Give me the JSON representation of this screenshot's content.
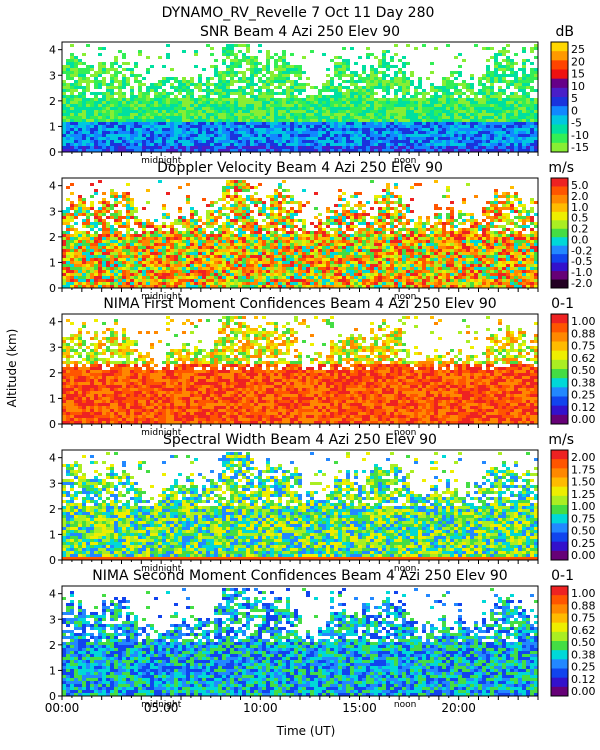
{
  "header": {
    "title": "DYNAMO_RV_Revelle    7 Oct 11 Day 280"
  },
  "chart_data": {
    "type": "heatmap",
    "ylabel": "Altitude (km)",
    "xlabel": "Time (UT)",
    "x_tick_labels": [
      "00:00",
      "05:00",
      "10:00",
      "15:00",
      "20:00"
    ],
    "x_ticks_hours": [
      0,
      5,
      10,
      15,
      20
    ],
    "xlim_hours": [
      0,
      24
    ],
    "ylim_km": [
      0,
      4.3
    ],
    "y_tick_labels": [
      "0",
      "1",
      "2",
      "3",
      "4"
    ],
    "markers": [
      {
        "label": "midnight",
        "hour": 5.0
      },
      {
        "label": "noon",
        "hour": 17.3
      }
    ],
    "panels": [
      {
        "title": "SNR Beam 4 Azi 250 Elev 90",
        "units": "dB",
        "colorbar_labels": [
          "25",
          "20",
          "15",
          "10",
          "5",
          "0",
          "-5",
          "-10",
          "-15"
        ],
        "colors": [
          "#ffd700",
          "#ff9900",
          "#ff4400",
          "#ee1111",
          "#660088",
          "#4a1ec8",
          "#1a33dd",
          "#1188ff",
          "#00c8e0",
          "#00e0a0",
          "#33ee55",
          "#88ee33"
        ]
      },
      {
        "title": "Doppler Velocity Beam 4 Azi 250 Elev 90",
        "units": "m/s",
        "colorbar_labels": [
          "5.0",
          "2.0",
          "1.0",
          "0.5",
          "0.2",
          "0.0",
          "-0.2",
          "-0.5",
          "-1.0",
          "-2.0"
        ],
        "colors": [
          "#ee2222",
          "#ff5500",
          "#ff8800",
          "#ffbb00",
          "#eeee00",
          "#aaee22",
          "#44dd44",
          "#00d8d8",
          "#2288ff",
          "#1144ee",
          "#3311cc",
          "#660077",
          "#220022"
        ]
      },
      {
        "title": "NIMA First Moment Confidences Beam 4 Azi 250 Elev 90",
        "units": "0-1",
        "colorbar_labels": [
          "1.00",
          "0.88",
          "0.75",
          "0.62",
          "0.50",
          "0.38",
          "0.25",
          "0.12",
          "0.00"
        ],
        "colors": [
          "#ee2222",
          "#ff5500",
          "#ff8800",
          "#ffbb00",
          "#eeee00",
          "#aaee22",
          "#44dd44",
          "#00d8d8",
          "#2288ff",
          "#1144ee",
          "#3311cc",
          "#660077"
        ]
      },
      {
        "title": "Spectral Width Beam 4 Azi 250 Elev 90",
        "units": "m/s",
        "colorbar_labels": [
          "2.00",
          "1.75",
          "1.50",
          "1.25",
          "1.00",
          "0.75",
          "0.50",
          "0.25",
          "0.00"
        ],
        "colors": [
          "#ee2222",
          "#ff5500",
          "#ff8800",
          "#ffbb00",
          "#eeee00",
          "#aaee22",
          "#44dd44",
          "#00d8d8",
          "#2288ff",
          "#1144ee",
          "#3311cc",
          "#660077"
        ]
      },
      {
        "title": "NIMA Second Moment Confidences Beam 4 Azi 250 Elev 90",
        "units": "0-1",
        "colorbar_labels": [
          "1.00",
          "0.88",
          "0.75",
          "0.62",
          "0.50",
          "0.38",
          "0.25",
          "0.12",
          "0.00"
        ],
        "colors": [
          "#ee2222",
          "#ff5500",
          "#ff8800",
          "#ffbb00",
          "#eeee00",
          "#aaee22",
          "#44dd44",
          "#00d8d8",
          "#2288ff",
          "#1144ee",
          "#3311cc",
          "#660077"
        ]
      }
    ]
  }
}
